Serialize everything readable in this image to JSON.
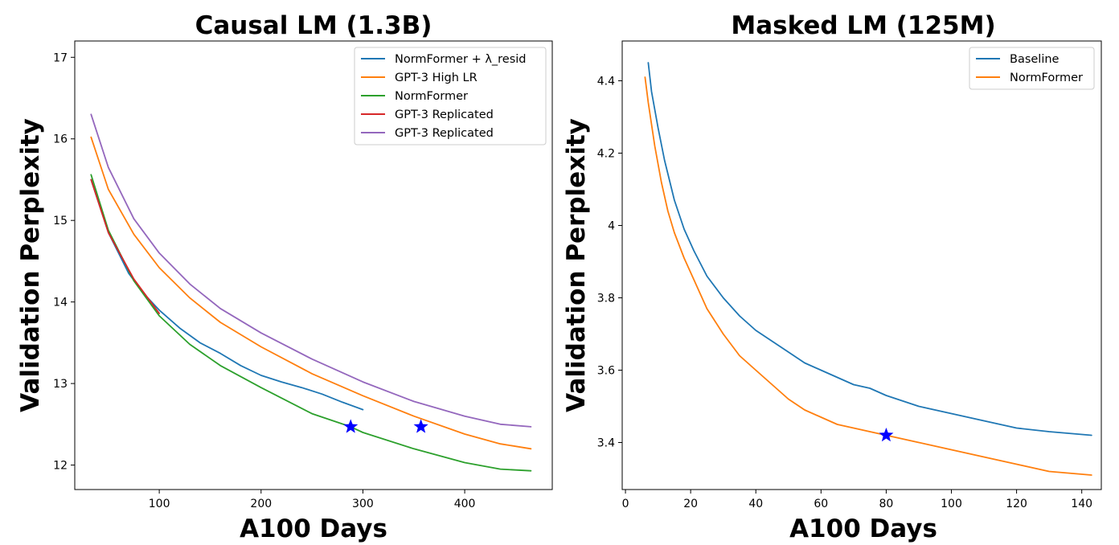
{
  "chart_data": [
    {
      "type": "line",
      "title": "Causal LM (1.3B)",
      "xlabel": "A100 Days",
      "ylabel": "Validation Perplexity",
      "xlim": [
        17,
        486
      ],
      "ylim": [
        11.7,
        17.2
      ],
      "xticks": [
        100,
        200,
        300,
        400
      ],
      "yticks": [
        12,
        13,
        14,
        15,
        16,
        17
      ],
      "legend": "top-right",
      "grid": false,
      "series": [
        {
          "name": "NormFormer + λ_resid",
          "color": "#1f77b4",
          "points": [
            [
              33,
              15.5
            ],
            [
              50,
              14.85
            ],
            [
              70,
              14.35
            ],
            [
              85,
              14.1
            ],
            [
              100,
              13.9
            ],
            [
              120,
              13.68
            ],
            [
              140,
              13.5
            ],
            [
              160,
              13.37
            ],
            [
              180,
              13.22
            ],
            [
              200,
              13.1
            ],
            [
              220,
              13.02
            ],
            [
              240,
              12.95
            ],
            [
              260,
              12.87
            ],
            [
              280,
              12.77
            ],
            [
              300,
              12.68
            ]
          ]
        },
        {
          "name": "GPT-3 High LR",
          "color": "#ff7f0e",
          "points": [
            [
              33,
              16.02
            ],
            [
              50,
              15.38
            ],
            [
              75,
              14.83
            ],
            [
              100,
              14.42
            ],
            [
              130,
              14.05
            ],
            [
              160,
              13.75
            ],
            [
              200,
              13.45
            ],
            [
              250,
              13.12
            ],
            [
              300,
              12.85
            ],
            [
              350,
              12.6
            ],
            [
              400,
              12.38
            ],
            [
              435,
              12.26
            ],
            [
              465,
              12.2
            ]
          ]
        },
        {
          "name": "NormFormer",
          "color": "#2ca02c",
          "points": [
            [
              33,
              15.56
            ],
            [
              50,
              14.88
            ],
            [
              75,
              14.26
            ],
            [
              100,
              13.83
            ],
            [
              130,
              13.48
            ],
            [
              160,
              13.22
            ],
            [
              200,
              12.95
            ],
            [
              250,
              12.63
            ],
            [
              288,
              12.47
            ],
            [
              300,
              12.4
            ],
            [
              350,
              12.2
            ],
            [
              400,
              12.03
            ],
            [
              435,
              11.95
            ],
            [
              465,
              11.93
            ]
          ]
        },
        {
          "name": "GPT-3 Replicated",
          "color": "#d62728",
          "points": [
            [
              33,
              15.5
            ],
            [
              50,
              14.85
            ],
            [
              75,
              14.28
            ],
            [
              100,
              13.86
            ]
          ]
        },
        {
          "name": "GPT-3 Replicated",
          "color": "#9467bd",
          "points": [
            [
              33,
              16.3
            ],
            [
              50,
              15.65
            ],
            [
              75,
              15.02
            ],
            [
              100,
              14.6
            ],
            [
              130,
              14.22
            ],
            [
              160,
              13.92
            ],
            [
              200,
              13.62
            ],
            [
              250,
              13.3
            ],
            [
              300,
              13.02
            ],
            [
              350,
              12.78
            ],
            [
              400,
              12.6
            ],
            [
              435,
              12.5
            ],
            [
              465,
              12.47
            ]
          ]
        }
      ],
      "markers": [
        {
          "x": 288,
          "y": 12.47,
          "color": "#0000ff",
          "shape": "star"
        },
        {
          "x": 357,
          "y": 12.47,
          "color": "#0000ff",
          "shape": "star"
        }
      ]
    },
    {
      "type": "line",
      "title": "Masked LM (125M)",
      "xlabel": "A100 Days",
      "ylabel": "Validation Perplexity",
      "xlim": [
        -1,
        146
      ],
      "ylim": [
        3.27,
        4.51
      ],
      "xticks": [
        0,
        20,
        40,
        60,
        80,
        100,
        120,
        140
      ],
      "yticks": [
        3.4,
        3.6,
        3.8,
        4.0,
        4.2,
        4.4
      ],
      "legend": "top-right",
      "grid": false,
      "series": [
        {
          "name": "Baseline",
          "color": "#1f77b4",
          "points": [
            [
              7,
              4.45
            ],
            [
              8,
              4.37
            ],
            [
              10,
              4.27
            ],
            [
              12,
              4.18
            ],
            [
              15,
              4.07
            ],
            [
              18,
              3.99
            ],
            [
              21,
              3.93
            ],
            [
              25,
              3.86
            ],
            [
              30,
              3.8
            ],
            [
              35,
              3.75
            ],
            [
              40,
              3.71
            ],
            [
              45,
              3.68
            ],
            [
              50,
              3.65
            ],
            [
              55,
              3.62
            ],
            [
              60,
              3.6
            ],
            [
              65,
              3.58
            ],
            [
              70,
              3.56
            ],
            [
              75,
              3.55
            ],
            [
              80,
              3.53
            ],
            [
              90,
              3.5
            ],
            [
              100,
              3.48
            ],
            [
              110,
              3.46
            ],
            [
              120,
              3.44
            ],
            [
              130,
              3.43
            ],
            [
              143,
              3.42
            ]
          ]
        },
        {
          "name": "NormFormer",
          "color": "#ff7f0e",
          "points": [
            [
              6,
              4.41
            ],
            [
              7,
              4.34
            ],
            [
              9,
              4.22
            ],
            [
              11,
              4.12
            ],
            [
              13,
              4.04
            ],
            [
              15,
              3.98
            ],
            [
              18,
              3.91
            ],
            [
              21,
              3.85
            ],
            [
              25,
              3.77
            ],
            [
              30,
              3.7
            ],
            [
              35,
              3.64
            ],
            [
              40,
              3.6
            ],
            [
              45,
              3.56
            ],
            [
              50,
              3.52
            ],
            [
              55,
              3.49
            ],
            [
              60,
              3.47
            ],
            [
              65,
              3.45
            ],
            [
              70,
              3.44
            ],
            [
              75,
              3.43
            ],
            [
              80,
              3.42
            ],
            [
              90,
              3.4
            ],
            [
              100,
              3.38
            ],
            [
              110,
              3.36
            ],
            [
              120,
              3.34
            ],
            [
              130,
              3.32
            ],
            [
              143,
              3.31
            ]
          ]
        }
      ],
      "markers": [
        {
          "x": 80,
          "y": 3.42,
          "color": "#0000ff",
          "shape": "star"
        }
      ]
    }
  ]
}
